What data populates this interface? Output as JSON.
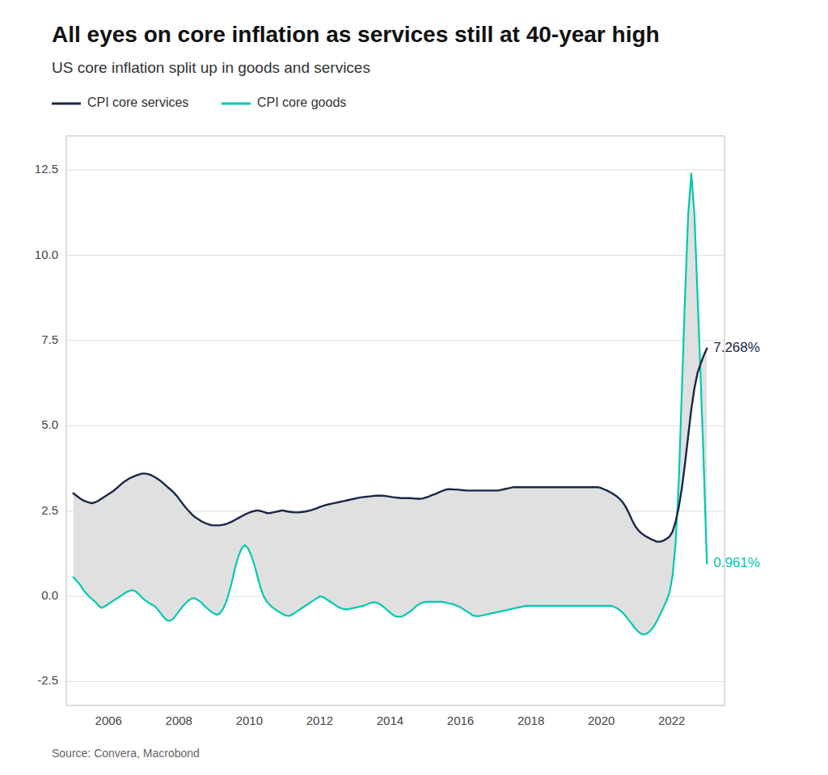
{
  "chart_data": {
    "type": "line",
    "title": "All eyes on core inflation as services still at 40-year high",
    "subtitle": "US core inflation split up in goods and services",
    "source": "Source: Convera, Macrobond",
    "color": "#e0e0e0",
    "grid": true,
    "legend": "top",
    "xlim": [
      2004.8,
      2023.5
    ],
    "xticks": [
      2006,
      2008,
      2010,
      2012,
      2014,
      2016,
      2018,
      2020,
      2022
    ],
    "ylim": [
      -3.2,
      13.5
    ],
    "yticks": [
      -2.5,
      {
        "value": 0.0,
        "label": "0.0"
      },
      2.5,
      {
        "value": 5.0,
        "label": "5.0"
      },
      7.5,
      {
        "value": 10.0,
        "label": "10.0"
      },
      12.5
    ],
    "annotations": [
      {
        "text": "7.268%",
        "x": 2023,
        "y": 7.268,
        "color": "#1a2744"
      },
      {
        "text": "0.961%",
        "x": 2023,
        "y": 0.961,
        "color": "#00c9b1"
      }
    ],
    "x": [
      2005.0,
      2005.0887,
      2005.1773,
      2005.266,
      2005.3547,
      2005.4433,
      2005.532,
      2005.6207,
      2005.7094,
      2005.798,
      2005.8867,
      2005.9754,
      2006.064,
      2006.1527,
      2006.2414,
      2006.33,
      2006.4187,
      2006.5074,
      2006.5961,
      2006.6847,
      2006.7734,
      2006.8621,
      2006.9507,
      2007.0394,
      2007.1281,
      2007.2167,
      2007.3054,
      2007.3941,
      2007.4828,
      2007.5714,
      2007.6601,
      2007.7488,
      2007.8374,
      2007.9261,
      2008.0148,
      2008.1034,
      2008.1921,
      2008.2808,
      2008.3695,
      2008.4581,
      2008.5468,
      2008.6355,
      2008.7241,
      2008.8128,
      2008.9015,
      2008.9901,
      2009.0788,
      2009.1675,
      2009.2562,
      2009.3448,
      2009.4335,
      2009.5222,
      2009.6108,
      2009.6995,
      2009.7882,
      2009.8768,
      2009.9655,
      2010.0542,
      2010.1429,
      2010.2315,
      2010.3202,
      2010.4089,
      2010.4975,
      2010.5862,
      2010.6749,
      2010.7635,
      2010.8522,
      2010.9409,
      2011.0296,
      2011.1182,
      2011.2069,
      2011.2956,
      2011.3842,
      2011.4729,
      2011.5616,
      2011.6502,
      2011.7389,
      2011.8276,
      2011.9163,
      2012.0049,
      2012.0936,
      2012.1823,
      2012.2709,
      2012.3596,
      2012.4483,
      2012.5369,
      2012.6256,
      2012.7143,
      2012.803,
      2012.8916,
      2012.9803,
      2013.069,
      2013.1576,
      2013.2463,
      2013.335,
      2013.4236,
      2013.5123,
      2013.601,
      2013.6897,
      2013.7783,
      2013.867,
      2013.9557,
      2014.0443,
      2014.133,
      2014.2217,
      2014.3103,
      2014.399,
      2014.4877,
      2014.5764,
      2014.665,
      2014.7537,
      2014.8424,
      2014.931,
      2015.0197,
      2015.1084,
      2015.197,
      2015.2857,
      2015.3744,
      2015.4631,
      2015.5517,
      2015.6404,
      2015.7291,
      2015.8177,
      2015.9064,
      2015.9951,
      2016.0837,
      2016.1724,
      2016.2611,
      2016.3498,
      2016.4384,
      2016.5271,
      2016.6158,
      2016.7044,
      2016.7931,
      2016.8818,
      2016.9704,
      2017.0591,
      2017.1478,
      2017.2365,
      2017.3251,
      2017.4138,
      2017.5025,
      2017.5911,
      2017.6798,
      2017.7685,
      2017.8571,
      2017.9458,
      2018.0345,
      2018.1232,
      2018.2118,
      2018.3005,
      2018.3892,
      2018.4778,
      2018.5665,
      2018.6552,
      2018.7438,
      2018.8325,
      2018.9212,
      2019.0099,
      2019.0985,
      2019.1872,
      2019.2759,
      2019.3645,
      2019.4532,
      2019.5419,
      2019.6305,
      2019.7192,
      2019.8079,
      2019.8966,
      2019.9852,
      2020.0739,
      2020.1626,
      2020.2512,
      2020.3399,
      2020.4286,
      2020.5172,
      2020.6059,
      2020.6946,
      2020.7833,
      2020.8719,
      2020.9606,
      2021.0493,
      2021.1379,
      2021.2266,
      2021.3153,
      2021.4039,
      2021.4926,
      2021.5813,
      2021.67,
      2021.7586,
      2021.8473,
      2021.936,
      2022.0246,
      2022.1133,
      2022.202,
      2022.2906,
      2022.3793,
      2022.468,
      2022.5567,
      2022.6453,
      2022.734,
      2022.8227,
      2022.9113,
      2023.0
    ],
    "series": [
      {
        "name": "CPI core services",
        "color": "#1a2744",
        "values": [
          3.02,
          2.95,
          2.88,
          2.82,
          2.78,
          2.75,
          2.73,
          2.76,
          2.8,
          2.86,
          2.92,
          2.98,
          3.04,
          3.1,
          3.18,
          3.26,
          3.34,
          3.4,
          3.46,
          3.5,
          3.54,
          3.57,
          3.6,
          3.6,
          3.58,
          3.55,
          3.5,
          3.44,
          3.38,
          3.3,
          3.22,
          3.14,
          3.06,
          2.96,
          2.84,
          2.72,
          2.6,
          2.5,
          2.4,
          2.32,
          2.26,
          2.2,
          2.16,
          2.12,
          2.09,
          2.08,
          2.08,
          2.08,
          2.1,
          2.12,
          2.16,
          2.2,
          2.25,
          2.3,
          2.35,
          2.4,
          2.44,
          2.48,
          2.5,
          2.52,
          2.5,
          2.47,
          2.44,
          2.44,
          2.46,
          2.48,
          2.5,
          2.52,
          2.5,
          2.48,
          2.47,
          2.46,
          2.46,
          2.47,
          2.48,
          2.5,
          2.52,
          2.55,
          2.58,
          2.62,
          2.65,
          2.68,
          2.7,
          2.72,
          2.74,
          2.76,
          2.78,
          2.8,
          2.82,
          2.84,
          2.86,
          2.88,
          2.9,
          2.91,
          2.92,
          2.93,
          2.94,
          2.95,
          2.95,
          2.95,
          2.94,
          2.93,
          2.91,
          2.9,
          2.89,
          2.88,
          2.88,
          2.88,
          2.88,
          2.87,
          2.86,
          2.86,
          2.87,
          2.9,
          2.93,
          2.97,
          3.0,
          3.04,
          3.08,
          3.12,
          3.14,
          3.14,
          3.13,
          3.13,
          3.12,
          3.11,
          3.1,
          3.1,
          3.1,
          3.1,
          3.1,
          3.1,
          3.1,
          3.1,
          3.1,
          3.1,
          3.1,
          3.12,
          3.14,
          3.16,
          3.18,
          3.2,
          3.2,
          3.2,
          3.2,
          3.2,
          3.2,
          3.2,
          3.2,
          3.2,
          3.2,
          3.2,
          3.2,
          3.2,
          3.2,
          3.2,
          3.2,
          3.2,
          3.2,
          3.2,
          3.2,
          3.2,
          3.2,
          3.2,
          3.2,
          3.2,
          3.2,
          3.2,
          3.2,
          3.18,
          3.14,
          3.1,
          3.05,
          3.0,
          2.94,
          2.86,
          2.76,
          2.62,
          2.44,
          2.24,
          2.06,
          1.94,
          1.85,
          1.78,
          1.73,
          1.68,
          1.64,
          1.6,
          1.6,
          1.63,
          1.68,
          1.75,
          1.9,
          2.2,
          2.62,
          3.18,
          3.9,
          4.7,
          5.48,
          6.1,
          6.55,
          6.82,
          7.06,
          7.268
        ]
      },
      {
        "name": "CPI core goods",
        "color": "#00c9b1",
        "values": [
          0.56,
          0.46,
          0.36,
          0.22,
          0.1,
          0.0,
          -0.08,
          -0.16,
          -0.26,
          -0.34,
          -0.3,
          -0.24,
          -0.18,
          -0.12,
          -0.06,
          0.0,
          0.06,
          0.12,
          0.16,
          0.18,
          0.14,
          0.06,
          -0.04,
          -0.12,
          -0.18,
          -0.24,
          -0.28,
          -0.38,
          -0.5,
          -0.62,
          -0.7,
          -0.72,
          -0.66,
          -0.54,
          -0.42,
          -0.3,
          -0.2,
          -0.12,
          -0.06,
          -0.06,
          -0.12,
          -0.18,
          -0.28,
          -0.36,
          -0.44,
          -0.5,
          -0.54,
          -0.5,
          -0.36,
          -0.16,
          0.14,
          0.5,
          0.9,
          1.2,
          1.42,
          1.5,
          1.4,
          1.2,
          0.92,
          0.58,
          0.24,
          0.0,
          -0.16,
          -0.26,
          -0.34,
          -0.4,
          -0.46,
          -0.52,
          -0.56,
          -0.58,
          -0.54,
          -0.48,
          -0.42,
          -0.36,
          -0.3,
          -0.24,
          -0.18,
          -0.12,
          -0.06,
          0.0,
          -0.02,
          -0.08,
          -0.14,
          -0.2,
          -0.26,
          -0.32,
          -0.36,
          -0.38,
          -0.38,
          -0.36,
          -0.34,
          -0.32,
          -0.3,
          -0.28,
          -0.24,
          -0.2,
          -0.18,
          -0.18,
          -0.22,
          -0.28,
          -0.36,
          -0.44,
          -0.52,
          -0.58,
          -0.6,
          -0.6,
          -0.56,
          -0.5,
          -0.44,
          -0.36,
          -0.28,
          -0.22,
          -0.18,
          -0.16,
          -0.16,
          -0.16,
          -0.16,
          -0.16,
          -0.16,
          -0.18,
          -0.2,
          -0.22,
          -0.24,
          -0.28,
          -0.32,
          -0.38,
          -0.44,
          -0.5,
          -0.56,
          -0.58,
          -0.58,
          -0.56,
          -0.54,
          -0.52,
          -0.5,
          -0.48,
          -0.46,
          -0.44,
          -0.42,
          -0.4,
          -0.38,
          -0.36,
          -0.34,
          -0.32,
          -0.3,
          -0.28,
          -0.28,
          -0.28,
          -0.28,
          -0.28,
          -0.28,
          -0.28,
          -0.28,
          -0.28,
          -0.28,
          -0.28,
          -0.28,
          -0.28,
          -0.28,
          -0.28,
          -0.28,
          -0.28,
          -0.28,
          -0.28,
          -0.28,
          -0.28,
          -0.28,
          -0.28,
          -0.28,
          -0.28,
          -0.28,
          -0.28,
          -0.28,
          -0.3,
          -0.34,
          -0.4,
          -0.48,
          -0.58,
          -0.7,
          -0.82,
          -0.94,
          -1.04,
          -1.1,
          -1.12,
          -1.08,
          -1.0,
          -0.88,
          -0.72,
          -0.54,
          -0.34,
          -0.14,
          0.1,
          0.6,
          1.6,
          3.4,
          6.1,
          8.8,
          11.2,
          12.4,
          11.2,
          8.8,
          6.4,
          3.8,
          0.961
        ]
      }
    ]
  }
}
